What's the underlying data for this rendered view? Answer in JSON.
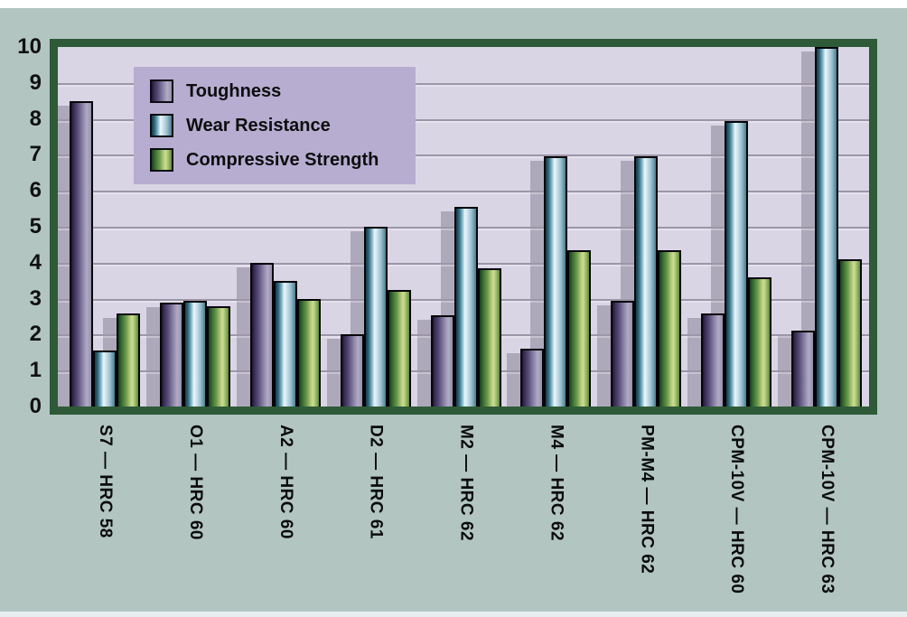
{
  "figure": {
    "background_color": "#b2c5c1",
    "plot_background_color": "#dad5e5",
    "plot_border_color": "#2e5a37",
    "gridline_color": "#9c96a8",
    "bar_shadow_color": "#aea8bb",
    "legend_background_color": "#b6add1"
  },
  "chart_data": {
    "type": "bar",
    "title": "",
    "xlabel": "",
    "ylabel": "",
    "ylim": [
      0,
      10
    ],
    "yticks": [
      0,
      1,
      2,
      3,
      4,
      5,
      6,
      7,
      8,
      9,
      10
    ],
    "grid": true,
    "legend_position": "top-left",
    "categories": [
      "S7 — HRC 58",
      "O1 — HRC 60",
      "A2 — HRC 60",
      "D2 — HRC 61",
      "M2 — HRC 62",
      "M4 — HRC 62",
      "PM-M4 — HRC 62",
      "CPM-10V — HRC 60",
      "CPM-10V — HRC 63"
    ],
    "series": [
      {
        "key": "toughness",
        "name": "Toughness",
        "color": "#5c5180",
        "values": [
          8.5,
          2.9,
          4.0,
          2.0,
          2.55,
          1.6,
          2.95,
          2.6,
          2.1
        ]
      },
      {
        "key": "wear-resistance",
        "name": "Wear Resistance",
        "color": "#9fc6d6",
        "values": [
          1.55,
          2.95,
          3.5,
          5.0,
          5.55,
          6.95,
          6.95,
          7.95,
          10.0
        ]
      },
      {
        "key": "compressive-strength",
        "name": "Compressive Strength",
        "color": "#8fb05e",
        "values": [
          2.6,
          2.8,
          3.0,
          3.25,
          3.85,
          4.35,
          4.35,
          3.6,
          4.1
        ]
      }
    ]
  }
}
